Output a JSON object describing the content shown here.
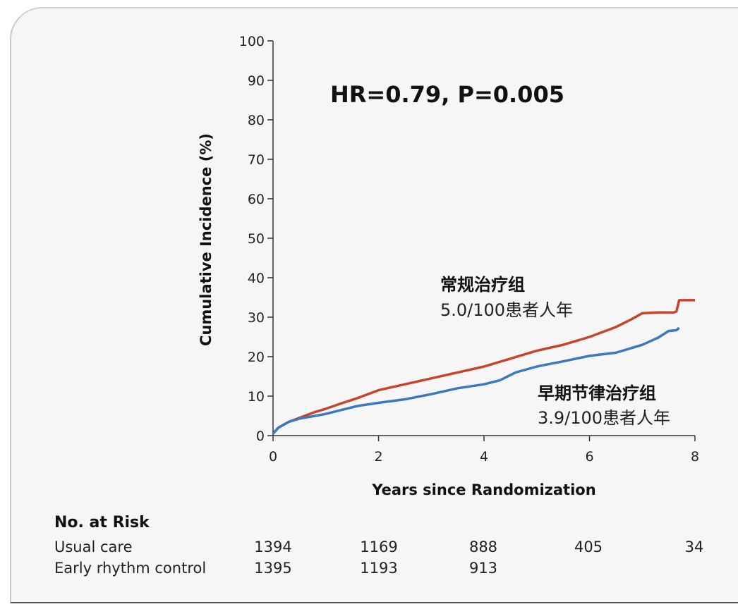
{
  "chart_data": {
    "type": "line",
    "xlabel": "Years since Randomization",
    "ylabel": "Cumulative Incidence (%)",
    "xlim": [
      0,
      8
    ],
    "ylim": [
      0,
      100
    ],
    "x_ticks": [
      0,
      2,
      4,
      6,
      8
    ],
    "y_ticks": [
      0,
      10,
      20,
      30,
      40,
      50,
      60,
      70,
      80,
      90,
      100
    ],
    "annotation": "HR=0.79, P=0.005",
    "series": [
      {
        "name": "Usual care",
        "label_title": "常规治疗组",
        "label_rate": "5.0/100患者人年",
        "color": "#c8432b",
        "x": [
          0,
          0.1,
          0.3,
          0.5,
          0.8,
          1.0,
          1.3,
          1.6,
          2.0,
          2.5,
          3.0,
          3.5,
          4.0,
          4.5,
          5.0,
          5.5,
          6.0,
          6.5,
          6.8,
          7.0,
          7.3,
          7.6,
          7.65,
          7.7,
          8.0
        ],
        "y": [
          0.5,
          2,
          3.5,
          4.5,
          6,
          6.8,
          8.2,
          9.5,
          11.5,
          13,
          14.5,
          16,
          17.5,
          19.5,
          21.5,
          23,
          25,
          27.5,
          29.5,
          31,
          31.2,
          31.2,
          31.5,
          34.3,
          34.3
        ]
      },
      {
        "name": "Early rhythm control",
        "label_title": "早期节律治疗组",
        "label_rate": "3.9/100患者人年",
        "color": "#3a78c0",
        "x": [
          0,
          0.1,
          0.3,
          0.5,
          0.8,
          1.0,
          1.3,
          1.6,
          2.0,
          2.5,
          3.0,
          3.5,
          4.0,
          4.3,
          4.6,
          5.0,
          5.5,
          6.0,
          6.5,
          7.0,
          7.3,
          7.5,
          7.65,
          7.7
        ],
        "y": [
          0.5,
          2,
          3.5,
          4.3,
          5,
          5.5,
          6.5,
          7.5,
          8.3,
          9.2,
          10.5,
          12,
          13,
          14,
          16,
          17.5,
          18.8,
          20.2,
          21,
          23,
          24.8,
          26.5,
          26.7,
          27.3
        ]
      }
    ],
    "risk_table": {
      "title": "No. at Risk",
      "rows": [
        {
          "label": "Usual care",
          "values": [
            "1394",
            "1169",
            "888",
            "405",
            "34"
          ]
        },
        {
          "label": "Early rhythm control",
          "values": [
            "1395",
            "1193",
            "913",
            "",
            ""
          ]
        }
      ]
    }
  }
}
